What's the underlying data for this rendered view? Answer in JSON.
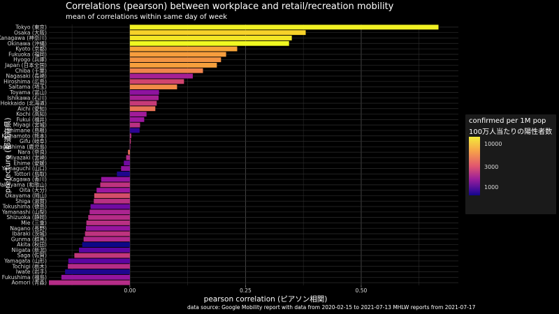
{
  "title": "Correlations (pearson) between workplace and retail/recreation mobility",
  "subtitle": "mean of correlations within same day of week",
  "caption": "data source: Google Mobility report with data from 2020-02-15 to 2021-07-13 MHLW reports from 2021-07-17",
  "legend": {
    "title_line1": "confirmed per 1M pop",
    "title_line2": "100万人当たりの陽性者数",
    "ticks": [
      "10000",
      "3000",
      "1000"
    ],
    "tick_values": [
      10000,
      3000,
      1000
    ],
    "scale": "log"
  },
  "colors": {
    "background": "#000000",
    "panel": "#000000",
    "grid": "#3a3a3a",
    "text": "#ffffff"
  },
  "chart_data": {
    "type": "bar",
    "orientation": "horizontal",
    "xlabel": "pearson correlation (ピアソン相関)",
    "ylabel": "prefecture (都道府県)",
    "xlim": [
      -0.175,
      0.71
    ],
    "xticks": [
      0.0,
      0.25,
      0.5
    ],
    "xtick_labels": [
      "0.00",
      "0.25",
      "0.50"
    ],
    "grid": true,
    "legend_placement": "right",
    "categories": [
      "Tokyo (東京)",
      "Osaka (大阪)",
      "Kanagawa (神奈川)",
      "Okinawa (沖縄)",
      "Kyoto (京都)",
      "Fukuoka (福岡)",
      "Hyogo (兵庫)",
      "Japan (日本全国)",
      "Chiba (千葉)",
      "Nagasaki (長崎)",
      "Hiroshima (広島)",
      "Saitama (埼玉)",
      "Toyama (富山)",
      "Ishikawa (石川)",
      "Hokkaido (北海道)",
      "Aichi (愛知)",
      "Kochi (高知)",
      "Fukui (福井)",
      "Miyagi (宮城)",
      "Shimane (島根)",
      "Kumamoto (熊本)",
      "Gifu (岐阜)",
      "Kagoshima (鹿児島)",
      "Nara (奈良)",
      "Miyazaki (宮崎)",
      "Ehime (愛媛)",
      "Yamaguchi (山口)",
      "Tottori (鳥取)",
      "Kagawa (香川)",
      "Wakayama (和歌山)",
      "Oita (大分)",
      "Okayama (岡山)",
      "Shiga (滋賀)",
      "Tokushima (徳島)",
      "Yamanashi (山梨)",
      "Shizuoka (静岡)",
      "Mie (三重)",
      "Nagano (長野)",
      "Ibaraki (茨城)",
      "Gunma (群馬)",
      "Akita (秋田)",
      "Niigata (新潟)",
      "Saga (佐賀)",
      "Yamagata (山形)",
      "Tochigi (栃木)",
      "Iwate (岩手)",
      "Fukushima (福島)",
      "Aomori (青森)"
    ],
    "values": [
      0.667,
      0.38,
      0.35,
      0.344,
      0.232,
      0.208,
      0.197,
      0.188,
      0.158,
      0.136,
      0.117,
      0.102,
      0.063,
      0.062,
      0.058,
      0.055,
      0.036,
      0.031,
      0.022,
      0.021,
      0.003,
      0.002,
      0.001,
      -0.004,
      -0.008,
      -0.013,
      -0.019,
      -0.028,
      -0.062,
      -0.064,
      -0.072,
      -0.077,
      -0.078,
      -0.085,
      -0.087,
      -0.09,
      -0.094,
      -0.095,
      -0.097,
      -0.1,
      -0.103,
      -0.11,
      -0.12,
      -0.133,
      -0.134,
      -0.14,
      -0.148,
      -0.175
    ],
    "colors_by_confirmed_per_1M": [
      10500,
      8700,
      9800,
      11000,
      6500,
      6200,
      5800,
      6300,
      5200,
      2300,
      3300,
      5500,
      1900,
      2300,
      3000,
      4600,
      2200,
      2100,
      2700,
      900,
      2600,
      2900,
      2300,
      4500,
      2500,
      1500,
      1900,
      800,
      2000,
      2800,
      2100,
      3500,
      2700,
      1500,
      2400,
      2600,
      2700,
      2000,
      2800,
      2500,
      700,
      1300,
      2900,
      1300,
      2600,
      800,
      2000,
      2600
    ]
  }
}
